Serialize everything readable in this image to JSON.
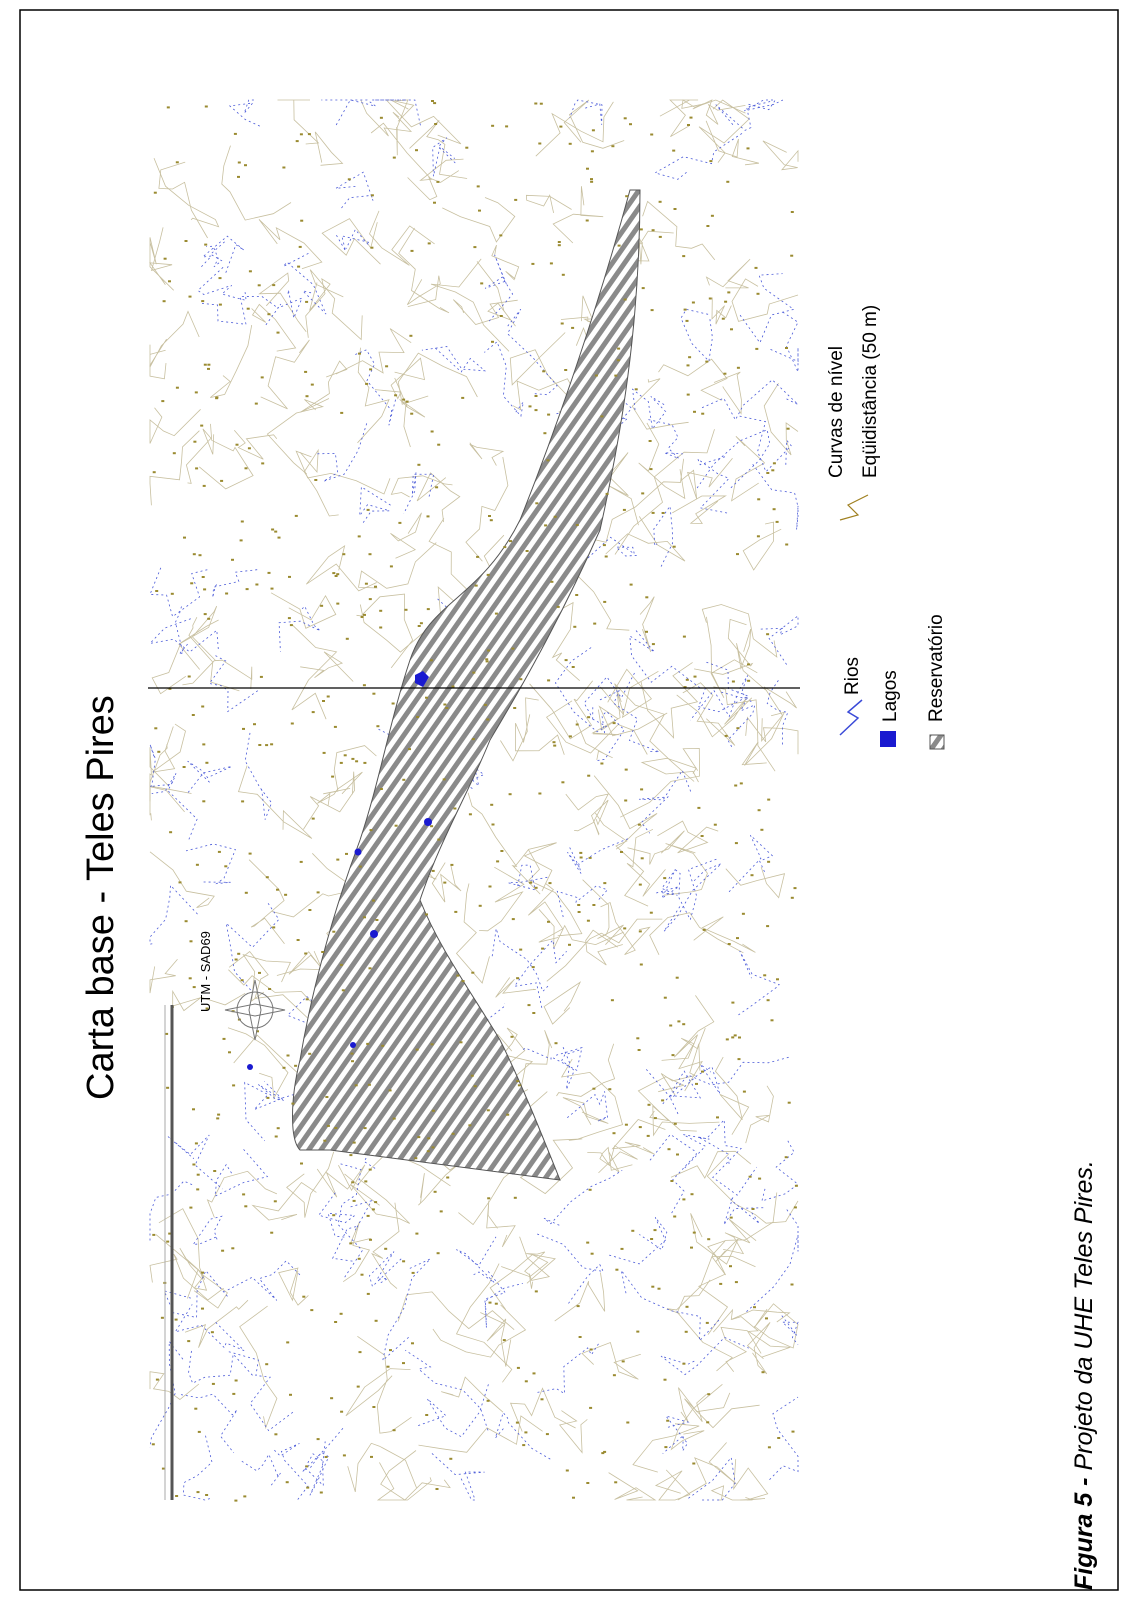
{
  "title": "Carta base - Teles Pires",
  "legend": {
    "rivers": "Rios",
    "lakes": "Lagos",
    "reservoir": "Reservatório",
    "contours": "Curvas de nível",
    "contour_interval": "Eqüidistância (50 m)"
  },
  "scale_label": "UTM - SAD69",
  "caption": {
    "label": "Figura 5 -",
    "text": "Projeto da UHE Teles Pires."
  }
}
